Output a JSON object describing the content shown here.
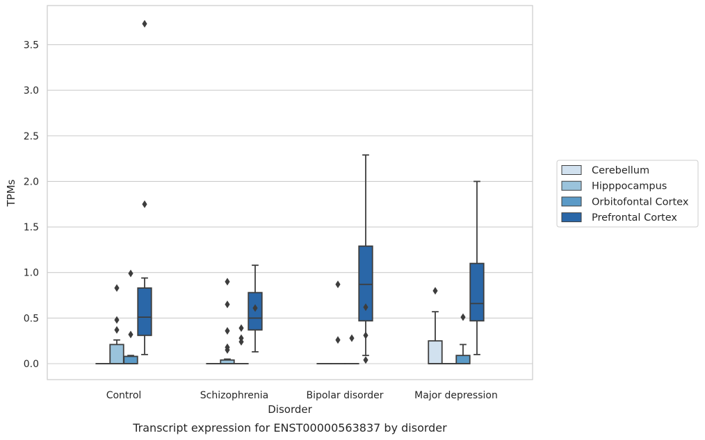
{
  "chart_data": {
    "type": "box",
    "xlabel": "Disorder",
    "ylabel": "TPMs",
    "caption": "Transcript expression for ENST00000563837 by disorder",
    "ylim": [
      -0.18,
      3.92
    ],
    "y_ticks": [
      0.0,
      0.5,
      1.0,
      1.5,
      2.0,
      2.5,
      3.0,
      3.5
    ],
    "y_tick_labels": [
      "0.0",
      "0.5",
      "1.0",
      "1.5",
      "2.0",
      "2.5",
      "3.0",
      "3.5"
    ],
    "grid": "horizontal",
    "legend_position": "right",
    "categories": [
      "Control",
      "Schizophrenia",
      "Bipolar disorder",
      "Major depression"
    ],
    "series": [
      {
        "name": "Cerebellum",
        "color": "#d1e1ef",
        "boxes": [
          {
            "q1": 0.0,
            "median": 0.0,
            "q3": 0.0,
            "whislo": 0.0,
            "whishi": 0.0,
            "fliers": []
          },
          {
            "q1": 0.0,
            "median": 0.0,
            "q3": 0.0,
            "whislo": 0.0,
            "whishi": 0.0,
            "fliers": []
          },
          {
            "q1": 0.0,
            "median": 0.0,
            "q3": 0.0,
            "whislo": 0.0,
            "whishi": 0.0,
            "fliers": []
          },
          {
            "q1": 0.0,
            "median": 0.0,
            "q3": 0.25,
            "whislo": 0.0,
            "whishi": 0.57,
            "fliers": [
              0.8
            ]
          }
        ]
      },
      {
        "name": "Hipppocampus",
        "color": "#9ac3dc",
        "boxes": [
          {
            "q1": 0.0,
            "median": 0.0,
            "q3": 0.21,
            "whislo": 0.0,
            "whishi": 0.26,
            "fliers": [
              0.37,
              0.48,
              0.83
            ]
          },
          {
            "q1": 0.0,
            "median": 0.0,
            "q3": 0.04,
            "whislo": 0.0,
            "whishi": 0.05,
            "fliers": [
              0.15,
              0.18,
              0.36,
              0.65,
              0.9
            ]
          },
          {
            "q1": 0.0,
            "median": 0.0,
            "q3": 0.0,
            "whislo": 0.0,
            "whishi": 0.0,
            "fliers": [
              0.26,
              0.87
            ]
          },
          {
            "q1": 0.0,
            "median": 0.0,
            "q3": 0.0,
            "whislo": 0.0,
            "whishi": 0.0,
            "fliers": []
          }
        ]
      },
      {
        "name": "Orbitofontal Cortex",
        "color": "#5b9ac7",
        "boxes": [
          {
            "q1": 0.0,
            "median": 0.0,
            "q3": 0.08,
            "whislo": 0.0,
            "whishi": 0.09,
            "fliers": [
              0.32,
              0.99
            ]
          },
          {
            "q1": 0.0,
            "median": 0.0,
            "q3": 0.0,
            "whislo": 0.0,
            "whishi": 0.0,
            "fliers": [
              0.24,
              0.28,
              0.39
            ]
          },
          {
            "q1": 0.0,
            "median": 0.0,
            "q3": 0.0,
            "whislo": 0.0,
            "whishi": 0.0,
            "fliers": [
              0.28
            ]
          },
          {
            "q1": 0.0,
            "median": 0.0,
            "q3": 0.09,
            "whislo": 0.0,
            "whishi": 0.21,
            "fliers": [
              0.51
            ]
          }
        ]
      },
      {
        "name": "Prefrontal Cortex",
        "color": "#2a67a8",
        "boxes": [
          {
            "q1": 0.31,
            "median": 0.51,
            "q3": 0.83,
            "whislo": 0.1,
            "whishi": 0.94,
            "fliers": [
              1.75,
              3.73
            ]
          },
          {
            "q1": 0.37,
            "median": 0.5,
            "q3": 0.78,
            "whislo": 0.13,
            "whishi": 1.08,
            "fliers": [
              0.61
            ]
          },
          {
            "q1": 0.47,
            "median": 0.87,
            "q3": 1.29,
            "whislo": 0.09,
            "whishi": 2.29,
            "fliers": [
              0.04,
              0.31,
              0.62
            ]
          },
          {
            "q1": 0.47,
            "median": 0.66,
            "q3": 1.1,
            "whislo": 0.1,
            "whishi": 2.0,
            "fliers": []
          }
        ]
      }
    ]
  }
}
